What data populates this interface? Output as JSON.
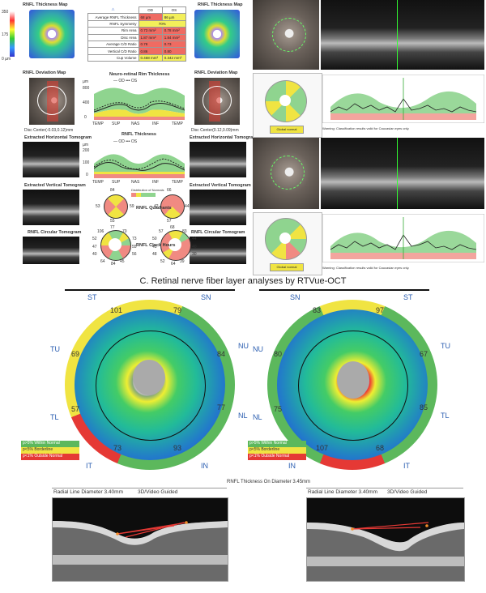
{
  "top": {
    "left_od": {
      "thickness_map_title": "RNFL Thickness Map",
      "scale_top": "350",
      "scale_mid": "175",
      "scale_bot": "0 µm",
      "deviation_map_title": "RNFL Deviation Map",
      "disc_center": "Disc Center(-0.03,0.12)mm",
      "ext_h_tomo": "Extracted Horizontal Tomogram",
      "ext_v_tomo": "Extracted Vertical Tomogram",
      "circ_tomo": "RNFL Circular Tomogram"
    },
    "right_os": {
      "thickness_map_title": "RNFL Thickness Map",
      "deviation_map_title": "RNFL Deviation Map",
      "disc_center": "Disc Center(0.12,0.09)mm",
      "ext_h_tomo": "Extracted Horizontal Tomogram",
      "ext_v_tomo": "Extracted Vertical Tomogram",
      "circ_tomo": "RNFL Circular Tomogram"
    },
    "params_table": {
      "header": [
        "",
        "OD",
        "OS"
      ],
      "rows": [
        {
          "label": "Average RNFL Thickness",
          "od": "68 µm",
          "os": "86 µm",
          "od_color": "r",
          "os_color": "y"
        },
        {
          "label": "RNFL Symmetry",
          "od": "70%",
          "os": "",
          "od_color": "y",
          "os_color": "y"
        },
        {
          "label": "Rim Area",
          "od": "0.73 mm²",
          "os": "0.78 mm²",
          "od_color": "r",
          "os_color": "r"
        },
        {
          "label": "Disc Area",
          "od": "1.87 mm²",
          "os": "1.84 mm²",
          "od_color": "r",
          "os_color": "r"
        },
        {
          "label": "Average C/D Ratio",
          "od": "0.78",
          "os": "0.73",
          "od_color": "r",
          "os_color": "r"
        },
        {
          "label": "Vertical C/D Ratio",
          "od": "0.86",
          "os": "0.80",
          "od_color": "r",
          "os_color": "r"
        },
        {
          "label": "Cup Volume",
          "od": "0.468 mm³",
          "os": "0.342 mm³",
          "od_color": "y",
          "os_color": "y"
        }
      ]
    },
    "nr_chart": {
      "title": "Neuro-retinal Rim Thickness",
      "legend": "— OD  ••• OS",
      "unit": "µm",
      "yticks": [
        "800",
        "400",
        "0"
      ],
      "xticks": [
        "TEMP",
        "SUP",
        "NAS",
        "INF",
        "TEMP"
      ]
    },
    "rnfl_chart": {
      "title": "RNFL Thickness",
      "legend": "— OD  ••• OS",
      "unit": "µm",
      "yticks": [
        "200",
        "100",
        "0"
      ],
      "xticks": [
        "TEMP",
        "SUP",
        "NAS",
        "INF",
        "TEMP"
      ]
    },
    "quadrants": {
      "label": "RNFL Quadrants",
      "od": {
        "top": "84",
        "left": "53",
        "right": "59",
        "bottom": "55"
      },
      "os": {
        "top": "66",
        "left": "42",
        "right": "44",
        "bottom": "57"
      }
    },
    "distribution_legend": "Distribution of Normals",
    "clock": {
      "label": "RNFL Clock Hours",
      "od": [
        "77",
        "106",
        "70",
        "73",
        "55",
        "56",
        "45",
        "84",
        "64",
        "40",
        "47",
        "52"
      ],
      "os": [
        "68",
        "57",
        "83",
        "44",
        "40",
        "30",
        "39",
        "64",
        "52",
        "48",
        "45",
        "50"
      ]
    },
    "rtvue_right": {
      "warning_1": "Warning: Classification results valid for Caucasian eyes only.",
      "warning_2": "Warning: Classification results valid for Caucasian eyes only.",
      "button_1": "Global normal",
      "button_2": "Global normal"
    }
  },
  "caption": "C. Retinal nerve fiber layer analyses by RTVue-OCT",
  "maps": {
    "left": {
      "ST": "ST",
      "SN": "SN",
      "NU": "NU",
      "NL": "NL",
      "IN": "IN",
      "IT": "IT",
      "TL": "TL",
      "TU": "TU",
      "v_st": "101",
      "v_sn": "79",
      "v_nu": "84",
      "v_nl": "77",
      "v_in": "93",
      "v_it": "73",
      "v_tl": "57",
      "v_tu": "69",
      "legend": [
        "p>5% Within Normal",
        "p<5% Borderline",
        "p<1% Outside Normal"
      ]
    },
    "right": {
      "SN": "SN",
      "ST": "ST",
      "TU": "TU",
      "TL": "TL",
      "IT": "IT",
      "IN": "IN",
      "NL": "NL",
      "NU": "NU",
      "v_sn": "83",
      "v_st": "97",
      "v_tu": "67",
      "v_tl": "85",
      "v_it": "68",
      "v_in": "107",
      "v_nl": "75",
      "v_nu": "80",
      "legend": [
        "p>5% Within Normal",
        "p<5% Borderline",
        "p<1% Outside Normal"
      ]
    }
  },
  "bottom": {
    "center_title": "RNFL Thickness On Diameter 3.45mm",
    "left_label": "Radial Line Diameter 3.40mm",
    "left_mode": "3D/Video Guided",
    "right_label": "Radial Line Diameter 3.40mm",
    "right_mode": "3D/Video Guided"
  },
  "colors": {
    "normal": "#5cb85c",
    "borderline": "#f0e442",
    "outside": "#e53935",
    "od_line": "#222",
    "band_green": "#8fd48f",
    "band_red": "#f08a82"
  }
}
